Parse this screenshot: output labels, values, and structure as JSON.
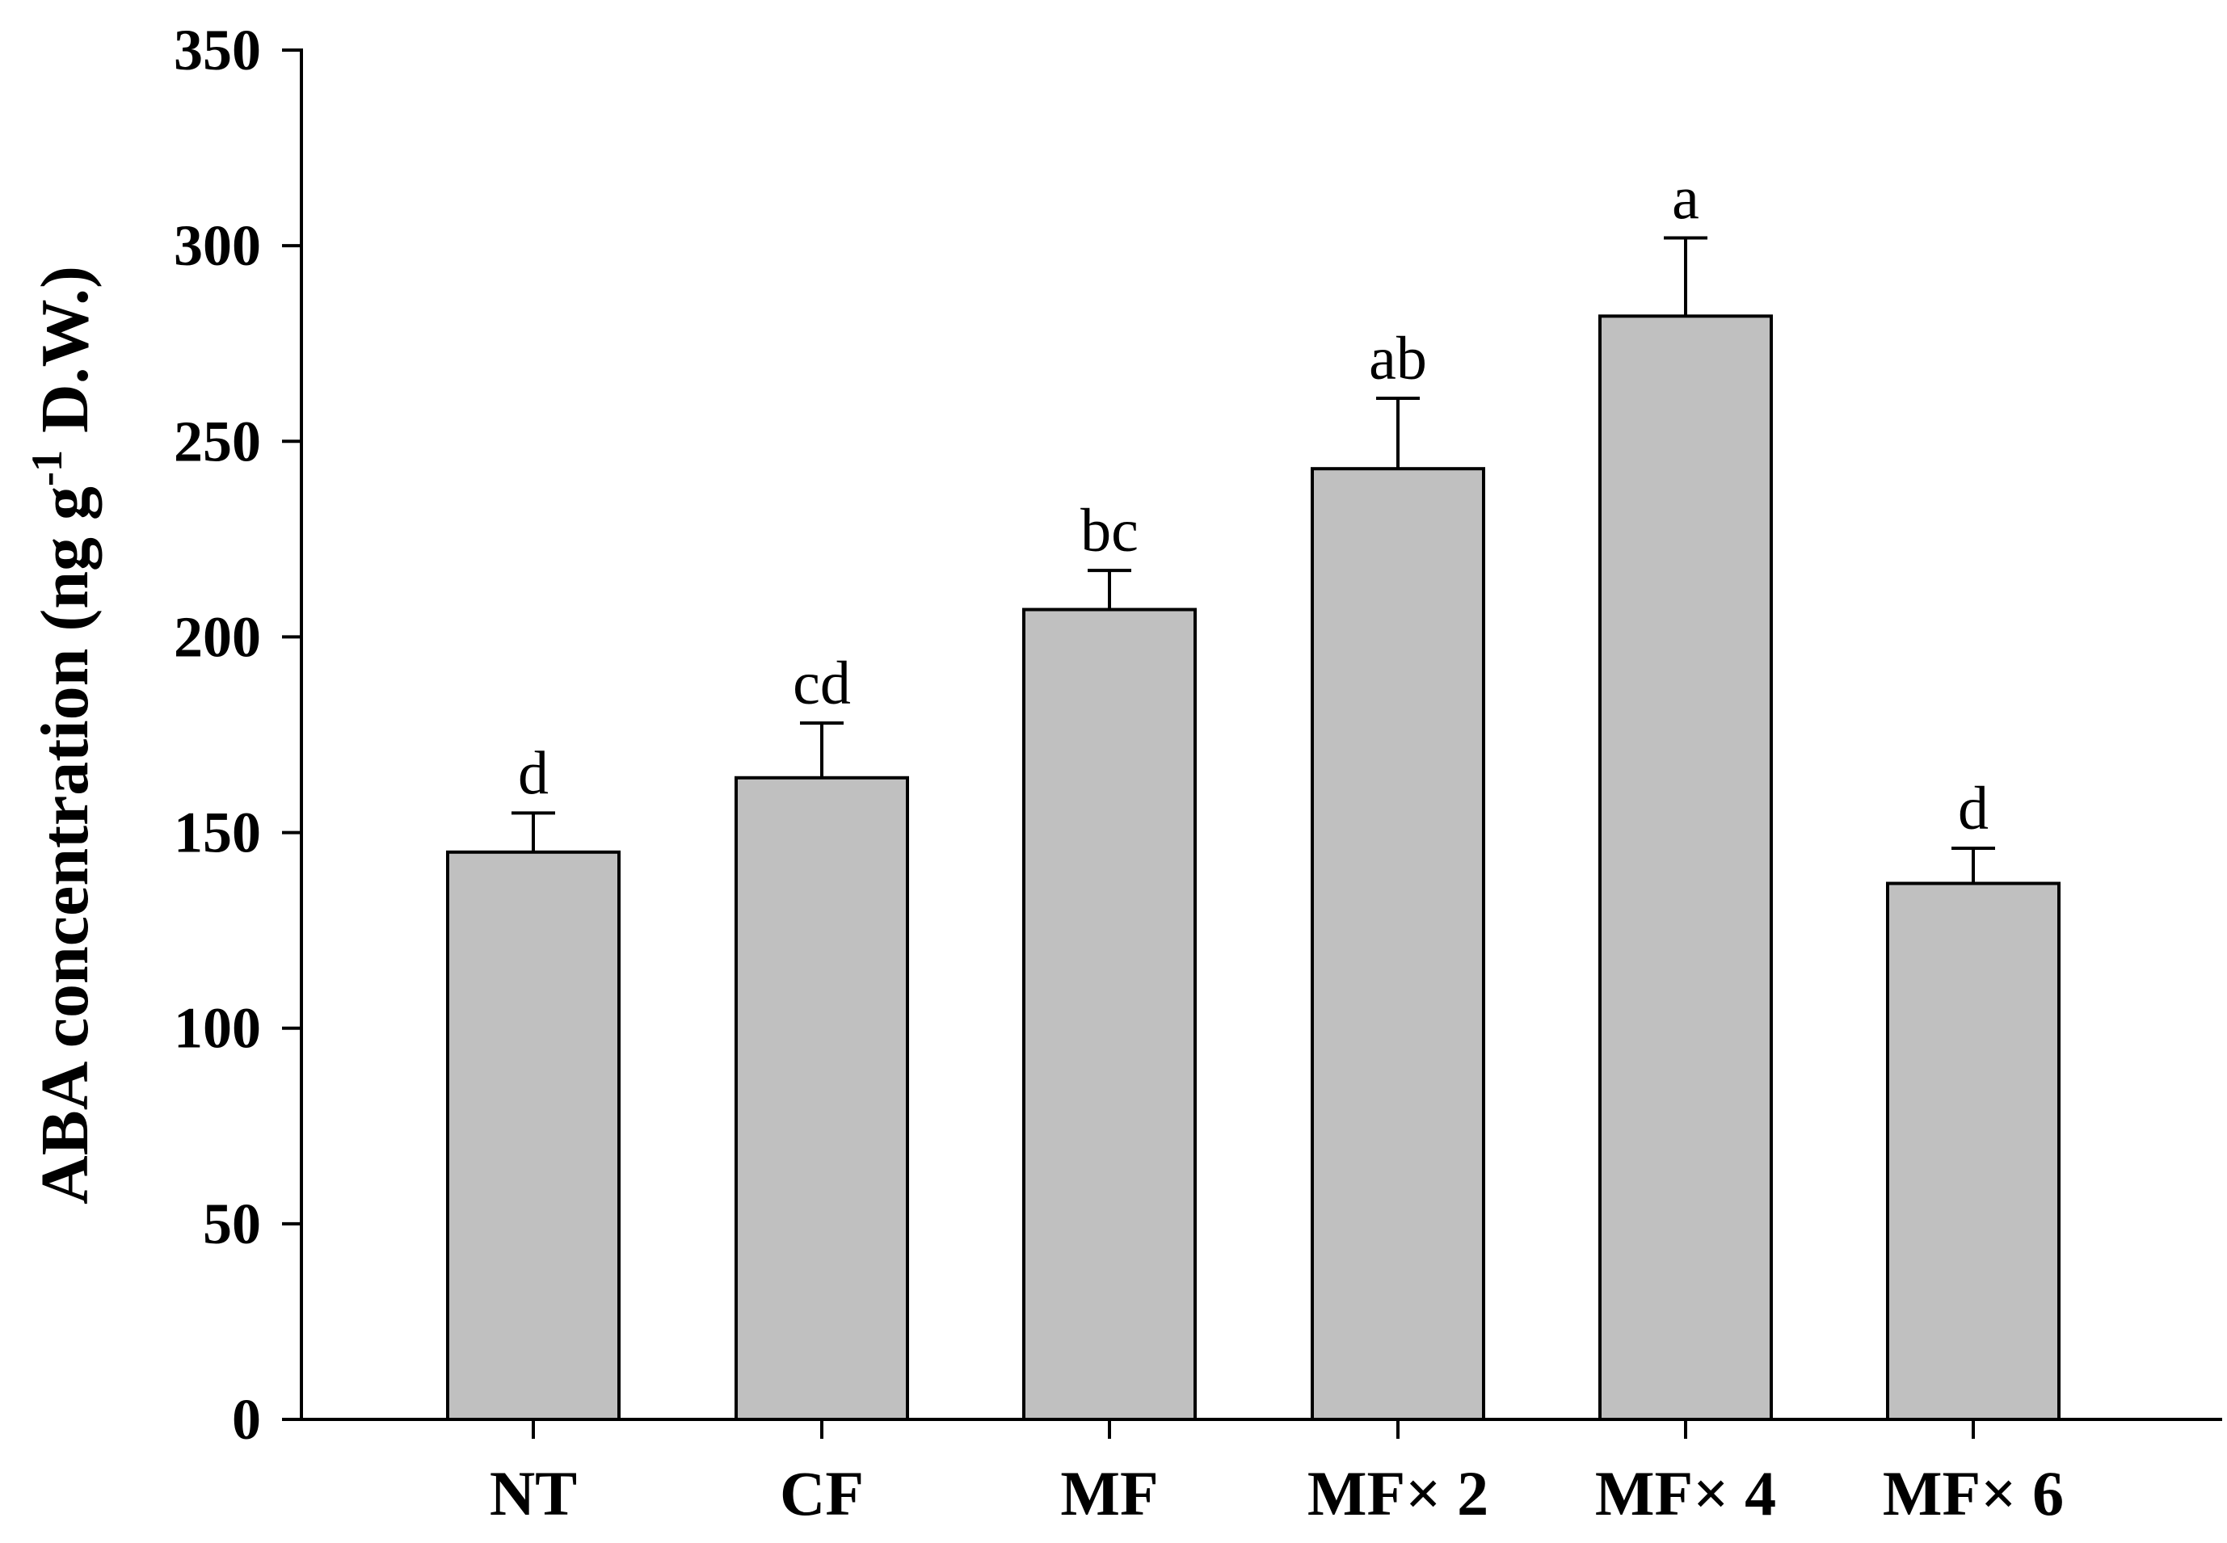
{
  "chart_data": {
    "type": "bar",
    "title": "",
    "xlabel": "",
    "ylabel": {
      "prefix": "ABA concentration (ng g",
      "superscript": "-1",
      "suffix": " D.W.)"
    },
    "ylim": [
      0,
      350
    ],
    "yticks": [
      "0",
      "50",
      "100",
      "150",
      "200",
      "250",
      "300",
      "350"
    ],
    "categories": [
      "NT",
      "CF",
      "MF",
      "MF× 2",
      "MF× 4",
      "MF× 6"
    ],
    "series": [
      {
        "values": [
          145,
          164,
          207,
          243,
          282,
          137
        ],
        "errors": [
          10,
          14,
          10,
          18,
          20,
          9
        ],
        "significance": [
          "d",
          "cd",
          "bc",
          "ab",
          "a",
          "d"
        ]
      }
    ],
    "bar_color": "#c0c0c0",
    "grid": false,
    "legend": "none"
  }
}
